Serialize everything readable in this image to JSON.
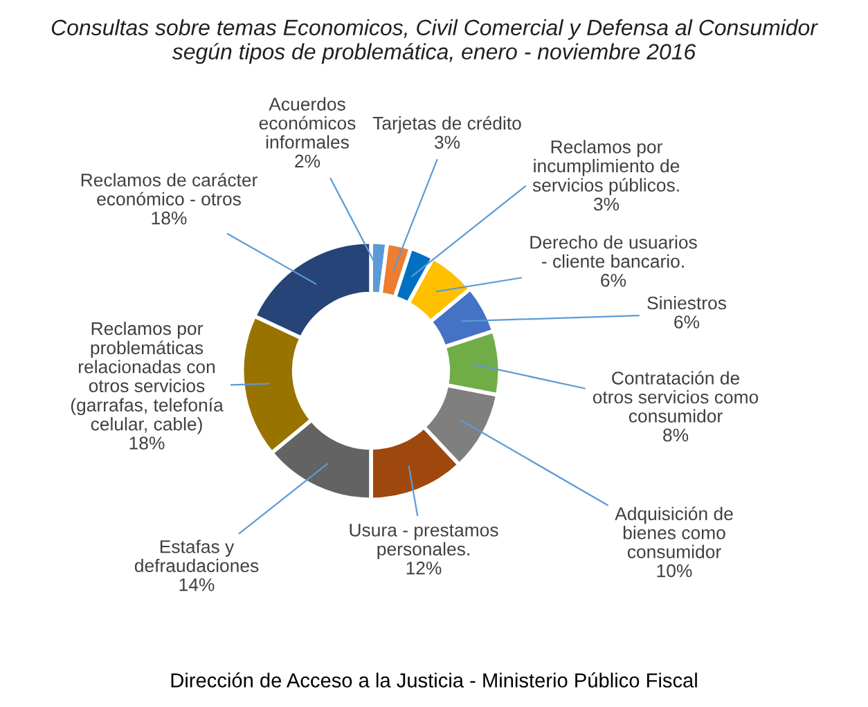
{
  "chart_data": {
    "type": "donut",
    "title": "Consultas sobre temas Economicos, Civil Comercial y Defensa al Consumidor\nsegún tipos de problemática, enero - noviembre 2016",
    "categories": [
      "Acuerdos\neconómicos\ninformales",
      "Tarjetas de crédito",
      "Reclamos por\nincumplimiento de\nservicios públicos.",
      "Derecho de usuarios\n- cliente bancario.",
      "Siniestros",
      "Contratación de\notros servicios como\nconsumidor",
      "Adquisición de\nbienes como\nconsumidor",
      "Usura - prestamos\npersonales.",
      "Estafas y\ndefraudaciones",
      "Reclamos por\nproblemáticas\nrelacionadas con\notros servicios\n(garrafas, telefonía\ncelular, cable)",
      "Reclamos de carácter\neconómico - otros"
    ],
    "values": [
      2,
      3,
      3,
      6,
      6,
      8,
      10,
      12,
      14,
      18,
      18
    ],
    "value_labels": [
      "2%",
      "3%",
      "3%",
      "6%",
      "6%",
      "8%",
      "10%",
      "12%",
      "14%",
      "18%",
      "18%"
    ],
    "colors": [
      "#5b9bd5",
      "#ed7d31",
      "#0070c0",
      "#ffc000",
      "#4472c4",
      "#70ad47",
      "#7f7f7f",
      "#9e480e",
      "#636363",
      "#997300",
      "#264478"
    ],
    "annotations": [
      "Dirección de Acceso a la Justicia - Ministerio Público Fiscal"
    ]
  }
}
